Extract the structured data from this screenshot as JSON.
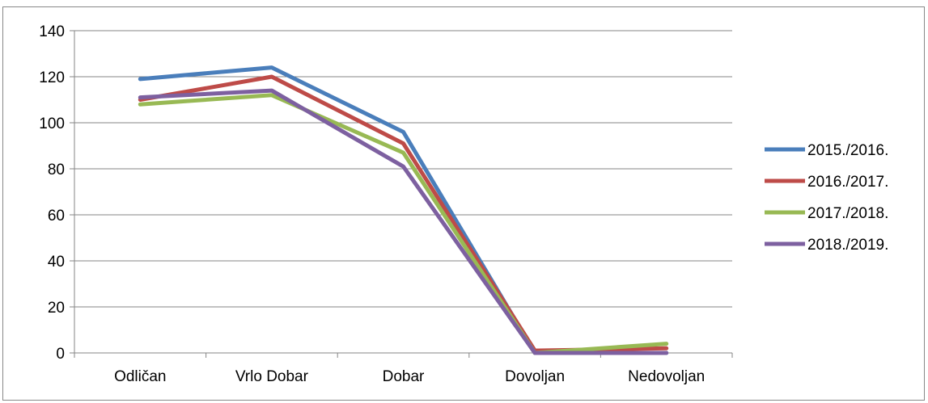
{
  "chart_data": {
    "type": "line",
    "categories": [
      "Odličan",
      "Vrlo Dobar",
      "Dobar",
      "Dovoljan",
      "Nedovoljan"
    ],
    "series": [
      {
        "name": "2015./2016.",
        "color": "#4a7ebb",
        "values": [
          119,
          124,
          96,
          0,
          0
        ]
      },
      {
        "name": "2016./2017.",
        "color": "#be4b48",
        "values": [
          110,
          120,
          91,
          1,
          2
        ]
      },
      {
        "name": "2017./2018.",
        "color": "#98b954",
        "values": [
          108,
          112,
          87,
          0,
          4
        ]
      },
      {
        "name": "2018./2019.",
        "color": "#7d60a0",
        "values": [
          111,
          114,
          81,
          0,
          0
        ]
      }
    ],
    "title": "",
    "xlabel": "",
    "ylabel": "",
    "ylim": [
      0,
      140
    ],
    "yticks": [
      0,
      20,
      40,
      60,
      80,
      100,
      120,
      140
    ],
    "grid": true,
    "gridColor": "#868686",
    "legend": "right"
  }
}
